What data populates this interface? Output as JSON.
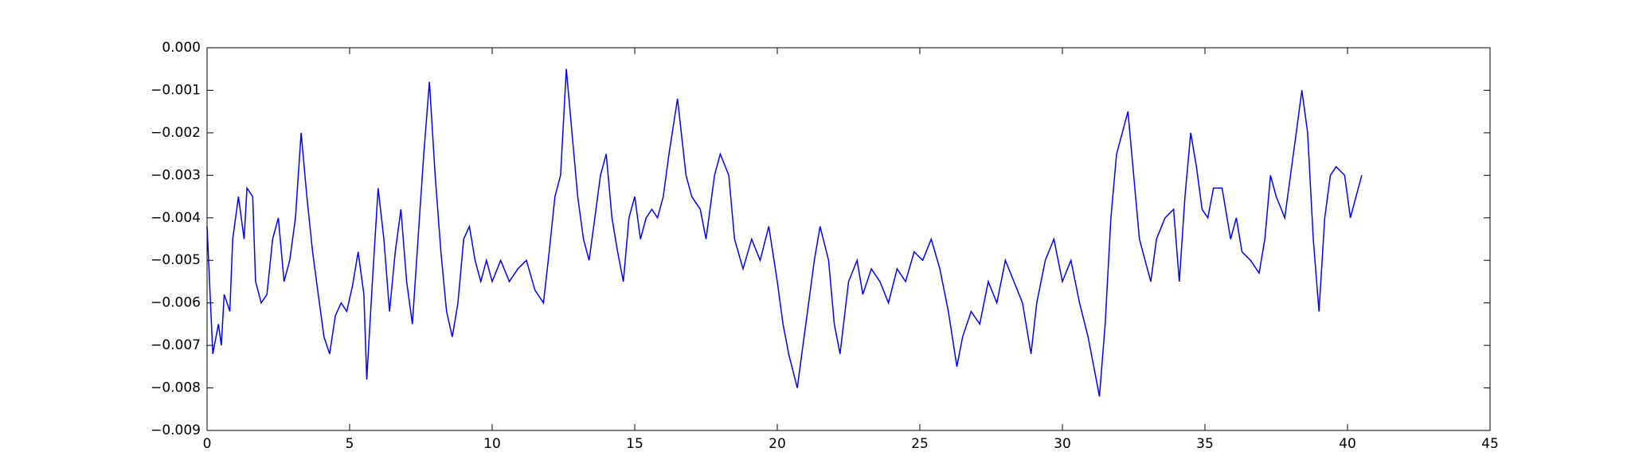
{
  "chart_data": {
    "type": "line",
    "x": [
      0,
      0.2,
      0.4,
      0.5,
      0.6,
      0.8,
      0.9,
      1.1,
      1.3,
      1.4,
      1.6,
      1.7,
      1.9,
      2.1,
      2.3,
      2.5,
      2.7,
      2.9,
      3.1,
      3.3,
      3.5,
      3.7,
      3.9,
      4.1,
      4.3,
      4.5,
      4.7,
      4.9,
      5.1,
      5.3,
      5.5,
      5.6,
      5.8,
      6.0,
      6.2,
      6.4,
      6.6,
      6.8,
      7.0,
      7.2,
      7.4,
      7.6,
      7.8,
      8.0,
      8.2,
      8.4,
      8.6,
      8.8,
      9.0,
      9.2,
      9.4,
      9.6,
      9.8,
      10.0,
      10.3,
      10.6,
      10.9,
      11.2,
      11.5,
      11.8,
      12.0,
      12.2,
      12.4,
      12.6,
      12.8,
      13.0,
      13.2,
      13.4,
      13.6,
      13.8,
      14.0,
      14.2,
      14.4,
      14.6,
      14.8,
      15.0,
      15.2,
      15.4,
      15.6,
      15.8,
      16.0,
      16.2,
      16.5,
      16.8,
      17.0,
      17.3,
      17.5,
      17.8,
      18.0,
      18.3,
      18.5,
      18.8,
      19.1,
      19.4,
      19.7,
      20.0,
      20.2,
      20.4,
      20.7,
      20.9,
      21.1,
      21.3,
      21.5,
      21.8,
      22.0,
      22.2,
      22.5,
      22.8,
      23.0,
      23.3,
      23.6,
      23.9,
      24.2,
      24.5,
      24.8,
      25.1,
      25.4,
      25.7,
      26.0,
      26.3,
      26.5,
      26.8,
      27.1,
      27.4,
      27.7,
      28.0,
      28.3,
      28.6,
      28.9,
      29.1,
      29.4,
      29.7,
      30.0,
      30.3,
      30.6,
      30.9,
      31.1,
      31.3,
      31.5,
      31.7,
      31.9,
      32.1,
      32.3,
      32.5,
      32.7,
      32.9,
      33.1,
      33.3,
      33.6,
      33.9,
      34.1,
      34.3,
      34.5,
      34.7,
      34.9,
      35.1,
      35.3,
      35.6,
      35.9,
      36.1,
      36.3,
      36.6,
      36.9,
      37.1,
      37.3,
      37.5,
      37.8,
      38.0,
      38.2,
      38.4,
      38.6,
      38.8,
      39.0,
      39.2,
      39.4,
      39.6,
      39.9,
      40.1,
      40.3,
      40.5
    ],
    "series": [
      {
        "color": "#0000ff",
        "values": [
          -0.0042,
          -0.0072,
          -0.0065,
          -0.007,
          -0.0058,
          -0.0062,
          -0.0045,
          -0.0035,
          -0.0045,
          -0.0033,
          -0.0035,
          -0.0055,
          -0.006,
          -0.0058,
          -0.0045,
          -0.004,
          -0.0055,
          -0.005,
          -0.004,
          -0.002,
          -0.0035,
          -0.0048,
          -0.0058,
          -0.0068,
          -0.0072,
          -0.0063,
          -0.006,
          -0.0062,
          -0.0056,
          -0.0048,
          -0.0058,
          -0.0078,
          -0.0055,
          -0.0033,
          -0.0045,
          -0.0062,
          -0.0048,
          -0.0038,
          -0.0055,
          -0.0065,
          -0.0045,
          -0.0025,
          -0.0008,
          -0.003,
          -0.0048,
          -0.0062,
          -0.0068,
          -0.006,
          -0.0045,
          -0.0042,
          -0.005,
          -0.0055,
          -0.005,
          -0.0055,
          -0.005,
          -0.0055,
          -0.0052,
          -0.005,
          -0.0057,
          -0.006,
          -0.0048,
          -0.0035,
          -0.003,
          -0.0005,
          -0.002,
          -0.0035,
          -0.0045,
          -0.005,
          -0.004,
          -0.003,
          -0.0025,
          -0.004,
          -0.0048,
          -0.0055,
          -0.004,
          -0.0035,
          -0.0045,
          -0.004,
          -0.0038,
          -0.004,
          -0.0035,
          -0.0025,
          -0.0012,
          -0.003,
          -0.0035,
          -0.0038,
          -0.0045,
          -0.003,
          -0.0025,
          -0.003,
          -0.0045,
          -0.0052,
          -0.0045,
          -0.005,
          -0.0042,
          -0.0055,
          -0.0065,
          -0.0072,
          -0.008,
          -0.007,
          -0.006,
          -0.005,
          -0.0042,
          -0.005,
          -0.0065,
          -0.0072,
          -0.0055,
          -0.005,
          -0.0058,
          -0.0052,
          -0.0055,
          -0.006,
          -0.0052,
          -0.0055,
          -0.0048,
          -0.005,
          -0.0045,
          -0.0052,
          -0.0062,
          -0.0075,
          -0.0068,
          -0.0062,
          -0.0065,
          -0.0055,
          -0.006,
          -0.005,
          -0.0055,
          -0.006,
          -0.0072,
          -0.006,
          -0.005,
          -0.0045,
          -0.0055,
          -0.005,
          -0.006,
          -0.0068,
          -0.0075,
          -0.0082,
          -0.0065,
          -0.004,
          -0.0025,
          -0.002,
          -0.0015,
          -0.003,
          -0.0045,
          -0.005,
          -0.0055,
          -0.0045,
          -0.004,
          -0.0038,
          -0.0055,
          -0.0035,
          -0.002,
          -0.0028,
          -0.0038,
          -0.004,
          -0.0033,
          -0.0033,
          -0.0045,
          -0.004,
          -0.0048,
          -0.005,
          -0.0053,
          -0.0045,
          -0.003,
          -0.0035,
          -0.004,
          -0.003,
          -0.002,
          -0.001,
          -0.002,
          -0.0045,
          -0.0062,
          -0.004,
          -0.003,
          -0.0028,
          -0.003,
          -0.004,
          -0.0035,
          -0.003
        ]
      }
    ],
    "xlim": [
      0,
      45
    ],
    "xticks": [
      0,
      5,
      10,
      15,
      20,
      25,
      30,
      35,
      40,
      45
    ],
    "ylim": [
      -0.009,
      0
    ],
    "yticks": [
      {
        "value": -0.009,
        "label": "−0.009"
      },
      {
        "value": -0.008,
        "label": "−0.008"
      },
      {
        "value": -0.007,
        "label": "−0.007"
      },
      {
        "value": -0.006,
        "label": "−0.006"
      },
      {
        "value": -0.005,
        "label": "−0.005"
      },
      {
        "value": -0.004,
        "label": "−0.004"
      },
      {
        "value": -0.003,
        "label": "−0.003"
      },
      {
        "value": -0.002,
        "label": "−0.002"
      },
      {
        "value": -0.001,
        "label": "−0.001"
      },
      {
        "value": 0,
        "label": "0.000"
      }
    ]
  }
}
